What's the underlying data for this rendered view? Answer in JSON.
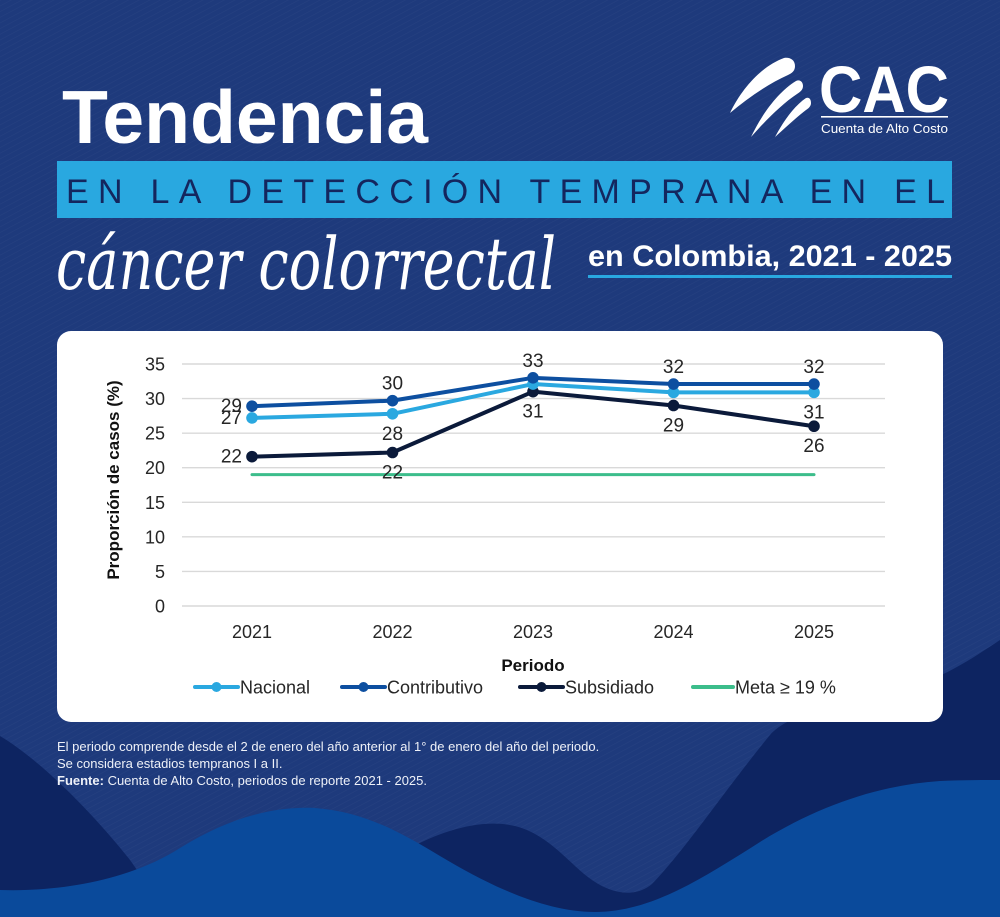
{
  "header": {
    "title": "Tendencia",
    "subtitle_band": "EN LA DETECCIÓN TEMPRANA EN EL",
    "script_title": "cáncer colorrectal",
    "location_years": "en Colombia, 2021 - 2025"
  },
  "logo": {
    "acronym": "CAC",
    "name": "Cuenta de Alto Costo",
    "icon": "cac-swoosh-icon"
  },
  "colors": {
    "background": "#1e3a7c",
    "wave_dark": "#0d2461",
    "wave_bright": "#0a4a9b",
    "band": "#29a8e0",
    "band_text": "#14265e",
    "underline": "#29a8e0"
  },
  "chart_data": {
    "type": "line",
    "title": "",
    "xlabel": "Periodo",
    "ylabel": "Proporción de casos (%)",
    "categories": [
      "2021",
      "2022",
      "2023",
      "2024",
      "2025"
    ],
    "ylim": [
      0,
      35
    ],
    "yticks": [
      0,
      5,
      10,
      15,
      20,
      25,
      30,
      35
    ],
    "grid": true,
    "legend_position": "bottom",
    "series": [
      {
        "name": "Nacional",
        "color": "#2aa8e0",
        "marker": true,
        "values": [
          27.2,
          27.8,
          32.1,
          30.9,
          30.9
        ],
        "labels": [
          "27",
          "28",
          null,
          null,
          "31"
        ],
        "label_positions": [
          "left",
          "below",
          null,
          null,
          "below"
        ]
      },
      {
        "name": "Contributivo",
        "color": "#0d4fa0",
        "marker": true,
        "values": [
          28.9,
          29.7,
          33.0,
          32.1,
          32.1
        ],
        "labels": [
          "29",
          "30",
          "33",
          "32",
          "32"
        ],
        "label_positions": [
          "left",
          "above",
          "above",
          "above",
          "above"
        ]
      },
      {
        "name": "Subsidiado",
        "color": "#0b1a3a",
        "marker": true,
        "values": [
          21.6,
          22.2,
          31.0,
          29.0,
          26.0
        ],
        "labels": [
          "22",
          "22",
          "31",
          "29",
          "26"
        ],
        "label_positions": [
          "left",
          "below",
          "below",
          "below",
          "below"
        ]
      },
      {
        "name": "Meta ≥ 19 %",
        "color": "#3cbd8b",
        "marker": false,
        "values": [
          19,
          19,
          19,
          19,
          19
        ],
        "labels": [
          null,
          null,
          null,
          null,
          null
        ],
        "label_positions": [
          null,
          null,
          null,
          null,
          null
        ]
      }
    ]
  },
  "notes": {
    "line1": "El periodo comprende desde el 2 de enero del año anterior al 1° de enero del año del periodo.",
    "line2": "Se considera estadios tempranos I a II.",
    "source_label": "Fuente:",
    "source_text": " Cuenta de Alto Costo, periodos de reporte 2021 - 2025."
  }
}
